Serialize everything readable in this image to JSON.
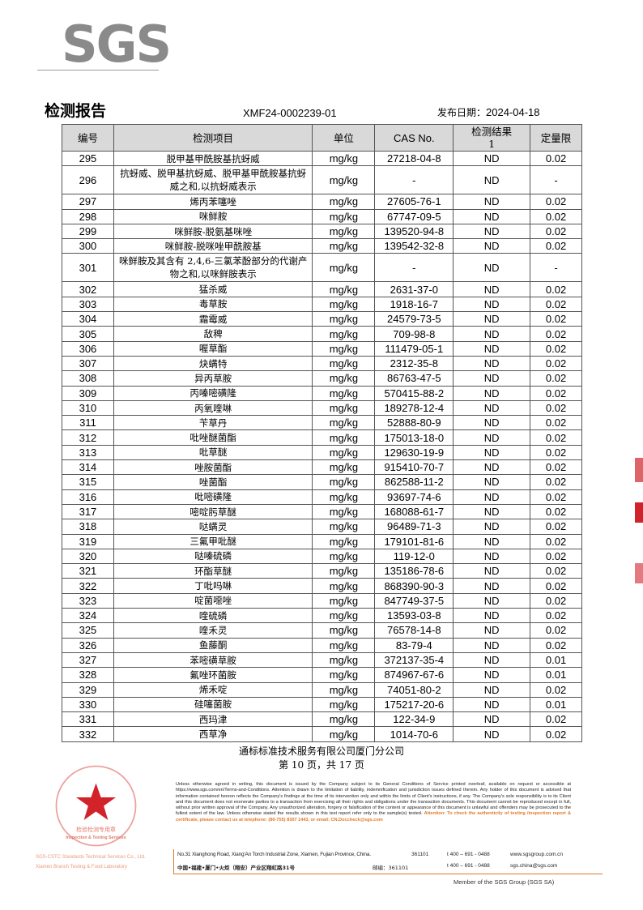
{
  "logo": "SGS",
  "header": {
    "title": "检测报告",
    "report_no": "XMF24-0002239-01",
    "date_label": "发布日期：",
    "date": "2024-04-18"
  },
  "table": {
    "columns": [
      "编号",
      "检测项目",
      "单位",
      "CAS No.",
      "检测结果\n1",
      "定量限"
    ],
    "rows": [
      [
        "295",
        "脱甲基甲酰胺基抗蚜威",
        "mg/kg",
        "27218-04-8",
        "ND",
        "0.02"
      ],
      [
        "296",
        "抗蚜威、脱甲基抗蚜威、脱甲基甲酰胺基抗蚜威之和,以抗蚜威表示",
        "mg/kg",
        "-",
        "ND",
        "-"
      ],
      [
        "297",
        "烯丙苯噻唑",
        "mg/kg",
        "27605-76-1",
        "ND",
        "0.02"
      ],
      [
        "298",
        "咪鲜胺",
        "mg/kg",
        "67747-09-5",
        "ND",
        "0.02"
      ],
      [
        "299",
        "咪鲜胺-脱氨基咪唑",
        "mg/kg",
        "139520-94-8",
        "ND",
        "0.02"
      ],
      [
        "300",
        "咪鲜胺-脱咪唑甲酰胺基",
        "mg/kg",
        "139542-32-8",
        "ND",
        "0.02"
      ],
      [
        "301",
        "咪鲜胺及其含有 2,4,6-三氯苯酚部分的代谢产物之和,以咪鲜胺表示",
        "mg/kg",
        "-",
        "ND",
        "-"
      ],
      [
        "302",
        "猛杀威",
        "mg/kg",
        "2631-37-0",
        "ND",
        "0.02"
      ],
      [
        "303",
        "毒草胺",
        "mg/kg",
        "1918-16-7",
        "ND",
        "0.02"
      ],
      [
        "304",
        "霜霉威",
        "mg/kg",
        "24579-73-5",
        "ND",
        "0.02"
      ],
      [
        "305",
        "敌稗",
        "mg/kg",
        "709-98-8",
        "ND",
        "0.02"
      ],
      [
        "306",
        "喔草酯",
        "mg/kg",
        "111479-05-1",
        "ND",
        "0.02"
      ],
      [
        "307",
        "炔螨特",
        "mg/kg",
        "2312-35-8",
        "ND",
        "0.02"
      ],
      [
        "308",
        "异丙草胺",
        "mg/kg",
        "86763-47-5",
        "ND",
        "0.02"
      ],
      [
        "309",
        "丙嗪嘧磺隆",
        "mg/kg",
        "570415-88-2",
        "ND",
        "0.02"
      ],
      [
        "310",
        "丙氧喹啉",
        "mg/kg",
        "189278-12-4",
        "ND",
        "0.02"
      ],
      [
        "311",
        "苄草丹",
        "mg/kg",
        "52888-80-9",
        "ND",
        "0.02"
      ],
      [
        "312",
        "吡唑醚菌酯",
        "mg/kg",
        "175013-18-0",
        "ND",
        "0.02"
      ],
      [
        "313",
        "吡草醚",
        "mg/kg",
        "129630-19-9",
        "ND",
        "0.02"
      ],
      [
        "314",
        "唑胺菌酯",
        "mg/kg",
        "915410-70-7",
        "ND",
        "0.02"
      ],
      [
        "315",
        "唑菌酯",
        "mg/kg",
        "862588-11-2",
        "ND",
        "0.02"
      ],
      [
        "316",
        "吡嘧磺隆",
        "mg/kg",
        "93697-74-6",
        "ND",
        "0.02"
      ],
      [
        "317",
        "嘧啶肟草醚",
        "mg/kg",
        "168088-61-7",
        "ND",
        "0.02"
      ],
      [
        "318",
        "哒螨灵",
        "mg/kg",
        "96489-71-3",
        "ND",
        "0.02"
      ],
      [
        "319",
        "三氟甲吡醚",
        "mg/kg",
        "179101-81-6",
        "ND",
        "0.02"
      ],
      [
        "320",
        "哒嗪硫磷",
        "mg/kg",
        "119-12-0",
        "ND",
        "0.02"
      ],
      [
        "321",
        "环酯草醚",
        "mg/kg",
        "135186-78-6",
        "ND",
        "0.02"
      ],
      [
        "322",
        "丁吡吗啉",
        "mg/kg",
        "868390-90-3",
        "ND",
        "0.02"
      ],
      [
        "323",
        "啶菌噁唑",
        "mg/kg",
        "847749-37-5",
        "ND",
        "0.02"
      ],
      [
        "324",
        "喹硫磷",
        "mg/kg",
        "13593-03-8",
        "ND",
        "0.02"
      ],
      [
        "325",
        "喹禾灵",
        "mg/kg",
        "76578-14-8",
        "ND",
        "0.02"
      ],
      [
        "326",
        "鱼藤酮",
        "mg/kg",
        "83-79-4",
        "ND",
        "0.02"
      ],
      [
        "327",
        "苯嘧磺草胺",
        "mg/kg",
        "372137-35-4",
        "ND",
        "0.01"
      ],
      [
        "328",
        "氟唑环菌胺",
        "mg/kg",
        "874967-67-6",
        "ND",
        "0.01"
      ],
      [
        "329",
        "烯禾啶",
        "mg/kg",
        "74051-80-2",
        "ND",
        "0.02"
      ],
      [
        "330",
        "硅噻菌胺",
        "mg/kg",
        "175217-20-6",
        "ND",
        "0.01"
      ],
      [
        "331",
        "西玛津",
        "mg/kg",
        "122-34-9",
        "ND",
        "0.02"
      ],
      [
        "332",
        "西草净",
        "mg/kg",
        "1014-70-6",
        "ND",
        "0.02"
      ]
    ]
  },
  "footer": {
    "company": "通标标准技术服务有限公司厦门分公司",
    "page": "第 10 页，共 17 页",
    "disclaimer": "Unless otherwise agreed in writing, this document is issued by the Company subject to its General Conditions of Service printed overleaf, available on request or accessible at https://www.sgs.com/en/Terms-and-Conditions. Attention is drawn to the limitation of liability, indemnification and jurisdiction issues defined therein. Any holder of this document is advised that information contained hereon reflects the Company's findings at the time of its intervention only and within the limits of Client's instructions, if any. The Company's sole responsibility is to its Client and this document does not exonerate parties to a transaction from exercising all their rights and obligations under the transaction documents. This document cannot be reproduced except in full, without prior written approval of the Company. Any unauthorized alteration, forgery or falsification of the content or appearance of this document is unlawful and offenders may be prosecuted to the fullest extent of the law. Unless otherwise stated the results shown in this test report refer only to the sample(s) tested.",
    "attention": "Attention: To check the authenticity of testing /inspection report & certificate, please contact us at telephone: (86-755) 8307 1443, or email: CN.Doccheck@sgs.com",
    "address_en": "No.31 Xianghong Road, Xiang'An Torch Industrial Zone, Xiamen, Fujian Province, China.",
    "postcode_en": "361101",
    "phone1": "t 400 – 691 - 0488",
    "web": "www.sgsgroup.com.cn",
    "address_cn": "中国•福建•厦门•火炬（翔安）产业区翔虹路31号",
    "postcode_cn": "邮编：361101",
    "phone2": "t 400 – 691 - 0488",
    "email": "sgs.china@sgs.com",
    "member": "Member of the SGS Group (SGS SA)"
  },
  "stamp": {
    "ring_text": "通标标准技术服务有限公司厦门分公司",
    "center_text": "检验检测专用章",
    "en_text": "Inspection & Testing Services",
    "lines": [
      "SGS-CSTC Standards Technical Services Co., Ltd.",
      "Xiamen Branch Testing & Food Laboratory"
    ]
  },
  "colors": {
    "accent": "#e07a2a",
    "stamp": "#d2222a",
    "logo": "#8a8a8a",
    "header_bg": "#d9d9d9"
  }
}
